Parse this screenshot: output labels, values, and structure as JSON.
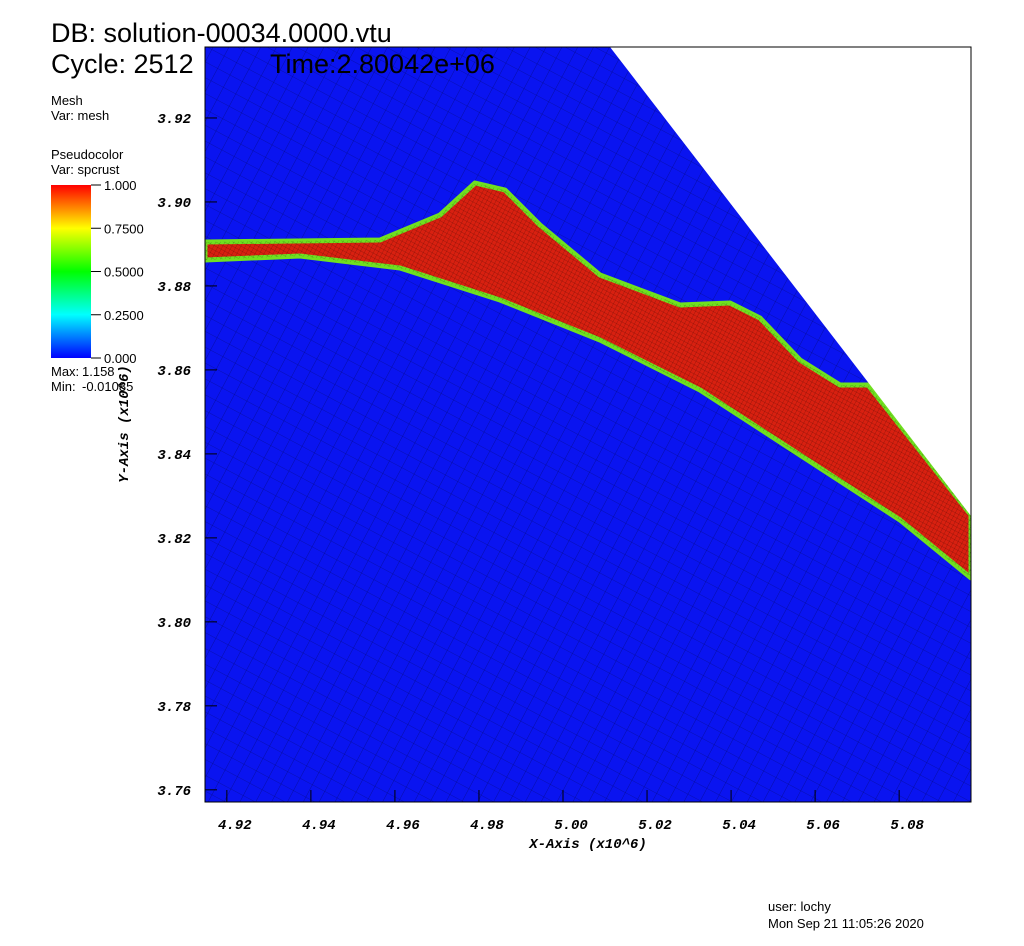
{
  "header": {
    "db": "DB: solution-00034.0000.vtu",
    "cycle": "Cycle: 2512",
    "time": "Time:2.80042e+06"
  },
  "chart_data": {
    "type": "pseudocolor",
    "xlabel": "X-Axis (x10^6)",
    "ylabel": "Y-Axis (x10^6)",
    "xlim": [
      4.9148,
      5.0971
    ],
    "ylim": [
      3.7571,
      3.9369
    ],
    "xticks": [
      4.92,
      4.94,
      4.96,
      4.98,
      {
        "value": 5.0,
        "label": "5.00"
      },
      5.02,
      5.04,
      5.06,
      5.08
    ],
    "yticks": [
      3.76,
      3.78,
      {
        "value": 3.8,
        "label": "3.80"
      },
      3.82,
      3.84,
      3.86,
      3.88,
      {
        "value": 3.9,
        "label": "3.90"
      },
      3.92
    ],
    "legend": {
      "mesh_title": "Mesh",
      "mesh_var": "Var: mesh",
      "plot_title": "Pseudocolor",
      "plot_var": "Var: spcrust",
      "colorbar_lim": [
        0,
        1
      ],
      "colorbar_ticks": [
        {
          "value": 1,
          "label": "1.000"
        },
        {
          "value": 0.75,
          "label": "0.7500"
        },
        {
          "value": 0.5,
          "label": "0.5000"
        },
        {
          "value": 0.25,
          "label": "0.2500"
        },
        {
          "value": 0,
          "label": "0.000"
        }
      ],
      "max_label": "Max:",
      "max": 1.158,
      "min_label": "Min:",
      "min": -0.01085
    }
  },
  "footer": {
    "user": "user: lochy",
    "date": "Mon Sep 21 11:05:26 2020"
  }
}
